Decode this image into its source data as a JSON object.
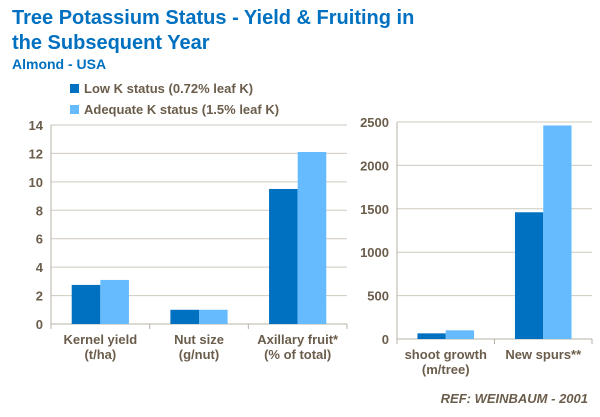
{
  "title": "Tree Potassium Status - Yield & Fruiting in the Subsequent Year",
  "subtitle": "Almond - USA",
  "reference": "REF:  WEINBAUM - 2001",
  "legend": [
    {
      "name": "Low K status (0.72% leaf K)",
      "color": "#0070c0"
    },
    {
      "name": "Adequate K status (1.5% leaf K)",
      "color": "#66bbff"
    }
  ],
  "chart_data": [
    {
      "type": "bar",
      "categories": [
        [
          "Kernel yield",
          "(t/ha)"
        ],
        [
          "Nut size",
          "(g/nut)"
        ],
        [
          "Axillary fruit*",
          "(% of total)"
        ]
      ],
      "series": [
        {
          "name": "Low K status (0.72% leaf K)",
          "values": [
            2.75,
            1.0,
            9.5
          ]
        },
        {
          "name": "Adequate K status (1.5% leaf K)",
          "values": [
            3.1,
            1.0,
            12.1
          ]
        }
      ],
      "ylim": [
        0,
        14
      ],
      "yticks": [
        0,
        2,
        4,
        6,
        8,
        10,
        12,
        14
      ],
      "grid": true
    },
    {
      "type": "bar",
      "categories": [
        [
          "shoot growth",
          "(m/tree)"
        ],
        [
          "New spurs**"
        ]
      ],
      "series": [
        {
          "name": "Low K status (0.72% leaf K)",
          "values": [
            65,
            1460
          ]
        },
        {
          "name": "Adequate K status (1.5% leaf K)",
          "values": [
            100,
            2460
          ]
        }
      ],
      "ylim": [
        0,
        2500
      ],
      "yticks": [
        0,
        500,
        1000,
        1500,
        2000,
        2500
      ],
      "grid": true
    }
  ]
}
